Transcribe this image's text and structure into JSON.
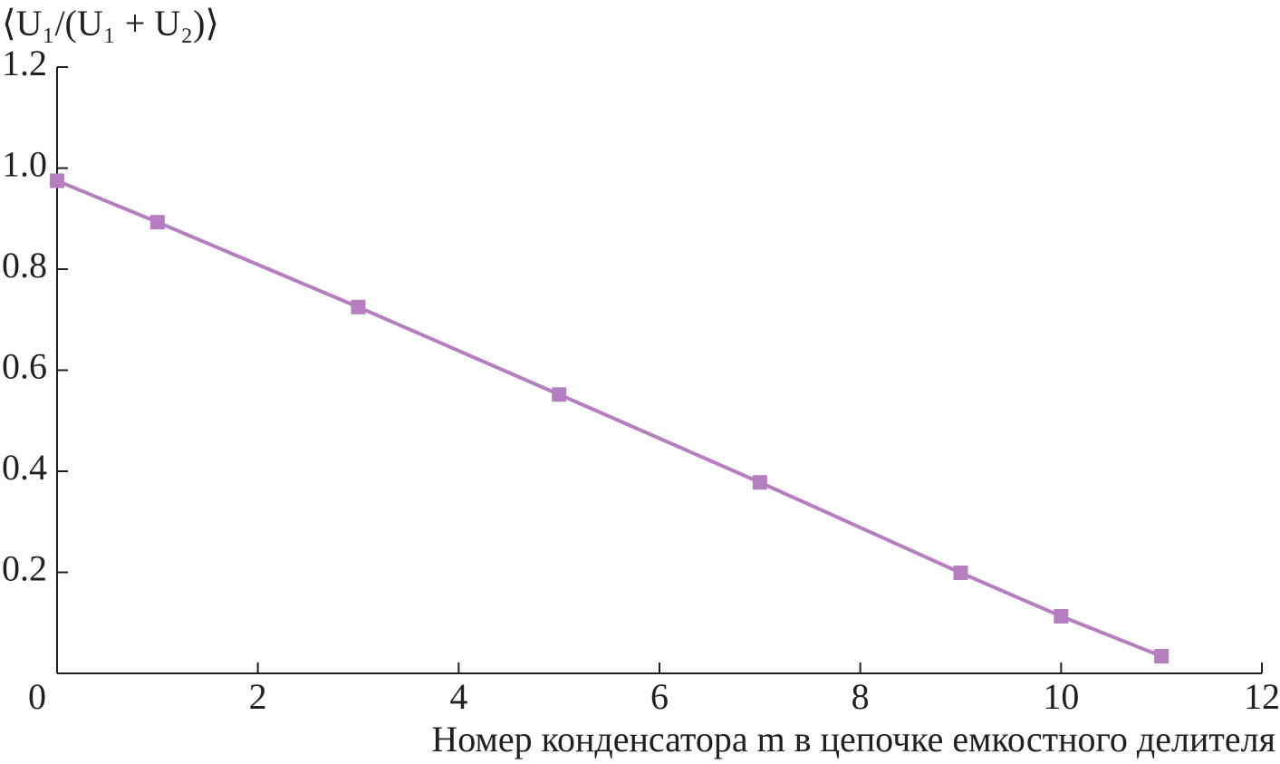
{
  "chart_data": {
    "type": "line",
    "ylabel": "⟨U₁/(U₁ + U₂)⟩",
    "xlabel": "Номер конденсатора m в цепочке емкостного делителя",
    "x": [
      0,
      1,
      3,
      5,
      7,
      9,
      10,
      11
    ],
    "series": [
      {
        "color": "#b57ec0",
        "values": [
          0.975,
          0.893,
          0.725,
          0.552,
          0.378,
          0.199,
          0.113,
          0.034
        ]
      }
    ],
    "xlim": [
      0,
      12
    ],
    "xticks": [
      0,
      2,
      4,
      6,
      8,
      10,
      12
    ],
    "ylim": [
      0,
      1.2
    ],
    "yticks": [
      0.2,
      0.4,
      0.6,
      0.8,
      {
        "value": 1,
        "label": "1.0"
      },
      1.2
    ]
  }
}
